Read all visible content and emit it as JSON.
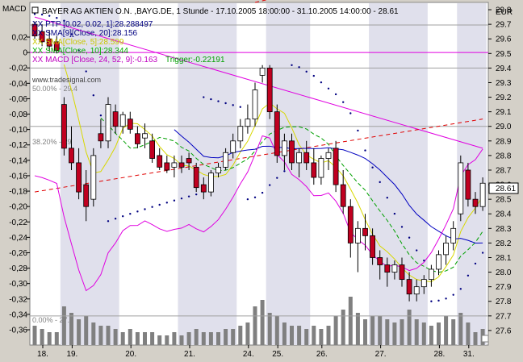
{
  "header": {
    "title": "BAYER AG AKTIEN O.N. ,BAYG.DE, 1 Stunde - 17.10.2005 18:00:00 - 31.10.2005 14:00:00 - 28.61",
    "left_axis_label": "MACD",
    "right_axis_label": "EUR"
  },
  "legend": [
    {
      "text": "XX PTP [0.02, 0.02, 1]:28.288497",
      "color": "#000080"
    },
    {
      "text": "XX SMA[9][Close, 20]:28.156",
      "color": "#000080"
    },
    {
      "text": "XX SMA[Close, 5]:28.599",
      "color": "#c8c800"
    },
    {
      "text": "XX SMA[Close, 10]:28.344",
      "color": "#00b000"
    },
    {
      "text": "XX MACD [Close, 24, 52, 9]:-0.163",
      "color": "#c000c0",
      "trigger": "Trigger:-0.22191",
      "trigger_color": "#00a000"
    }
  ],
  "watermark": "www.tradesignal.com",
  "fib_labels": {
    "f50": "50.00% - 29.4",
    "f382": "38.20% - 29",
    "f0": "0.00% - 27.7"
  },
  "current_price_label": "28.61",
  "colors": {
    "up": "#ffffff",
    "down": "#c00020",
    "sma5": "#d8d800",
    "sma10": "#00a000",
    "sma20": "#0000c0",
    "macd": "#e000e0",
    "trigger": "#00a000",
    "psar": "#000080",
    "trendline": "#e000e0",
    "dashed": "#e00000",
    "volume": "#808080",
    "fib": "#a0a0a0",
    "day_band": "#e0e0ec",
    "background": "#ffffff"
  },
  "chart_data": {
    "type": "candlestick",
    "title": "BAYER AG AKTIEN O.N. ,BAYG.DE, 1 Stunde - 17.10.2005 18:00:00 - 31.10.2005 14:00:00 - 28.61",
    "x_tick_labels": [
      "18.",
      "19.",
      "20.",
      "21.",
      "24.",
      "25.",
      "26.",
      "27.",
      "28.",
      "31."
    ],
    "y_right": {
      "label": "EUR",
      "min": 27.5,
      "max": 29.85,
      "ticks": [
        27.6,
        27.7,
        27.8,
        27.9,
        28,
        28.1,
        28.2,
        28.3,
        28.4,
        28.5,
        28.6,
        28.7,
        28.8,
        28.9,
        29,
        29.1,
        29.2,
        29.3,
        29.4,
        29.5,
        29.6,
        29.7,
        29.8
      ]
    },
    "y_left": {
      "label": "MACD",
      "min": -0.37,
      "max": 0.035,
      "ticks": [
        0.02,
        0,
        -0.02,
        -0.04,
        -0.06,
        -0.08,
        -0.1,
        -0.12,
        -0.14,
        -0.16,
        -0.18,
        -0.2,
        -0.22,
        -0.24,
        -0.26,
        -0.28,
        -0.3,
        -0.32,
        -0.34,
        -0.36
      ]
    },
    "fib_levels": [
      29.4,
      29.0,
      27.7
    ],
    "candles": [
      [
        29.7,
        29.72,
        29.6,
        29.62
      ],
      [
        29.65,
        29.7,
        29.55,
        29.58
      ],
      [
        29.6,
        29.66,
        29.52,
        29.55
      ],
      [
        29.58,
        29.62,
        29.5,
        29.52
      ],
      [
        29.15,
        29.2,
        28.8,
        28.85
      ],
      [
        28.85,
        29.0,
        28.7,
        28.75
      ],
      [
        28.75,
        28.85,
        28.5,
        28.55
      ],
      [
        28.6,
        28.7,
        28.35,
        28.45
      ],
      [
        28.5,
        28.85,
        28.45,
        28.8
      ],
      [
        28.95,
        29.05,
        28.85,
        28.9
      ],
      [
        28.9,
        29.2,
        28.85,
        29.15
      ],
      [
        29.1,
        29.15,
        28.95,
        29.0
      ],
      [
        29.0,
        29.1,
        28.95,
        29.08
      ],
      [
        29.05,
        29.1,
        28.95,
        28.98
      ],
      [
        28.95,
        29.0,
        28.85,
        28.88
      ],
      [
        28.92,
        29.02,
        28.85,
        28.95
      ],
      [
        28.9,
        28.95,
        28.75,
        28.78
      ],
      [
        28.8,
        28.85,
        28.7,
        28.72
      ],
      [
        28.75,
        28.8,
        28.68,
        28.7
      ],
      [
        28.72,
        28.8,
        28.65,
        28.75
      ],
      [
        28.75,
        28.8,
        28.68,
        28.72
      ],
      [
        28.78,
        28.82,
        28.7,
        28.75
      ],
      [
        28.72,
        28.75,
        28.55,
        28.58
      ],
      [
        28.6,
        28.65,
        28.5,
        28.55
      ],
      [
        28.55,
        28.7,
        28.52,
        28.68
      ],
      [
        28.68,
        28.75,
        28.65,
        28.72
      ],
      [
        28.72,
        28.85,
        28.7,
        28.82
      ],
      [
        28.82,
        28.95,
        28.78,
        28.9
      ],
      [
        28.9,
        29.05,
        28.85,
        29.0
      ],
      [
        29.0,
        29.15,
        28.95,
        29.05
      ],
      [
        29.05,
        29.3,
        29.0,
        29.25
      ],
      [
        29.35,
        29.42,
        29.3,
        29.4
      ],
      [
        29.4,
        29.42,
        29.05,
        29.1
      ],
      [
        29.1,
        29.15,
        28.75,
        28.8
      ],
      [
        28.8,
        28.95,
        28.7,
        28.9
      ],
      [
        28.9,
        28.95,
        28.7,
        28.75
      ],
      [
        28.75,
        28.85,
        28.65,
        28.82
      ],
      [
        28.82,
        28.9,
        28.7,
        28.75
      ],
      [
        28.75,
        28.85,
        28.6,
        28.65
      ],
      [
        28.65,
        28.8,
        28.6,
        28.78
      ],
      [
        28.78,
        28.85,
        28.7,
        28.82
      ],
      [
        28.85,
        28.9,
        28.55,
        28.6
      ],
      [
        28.6,
        28.7,
        28.4,
        28.45
      ],
      [
        28.45,
        28.5,
        28.1,
        28.2
      ],
      [
        28.2,
        28.35,
        28.0,
        28.3
      ],
      [
        28.3,
        28.4,
        28.15,
        28.25
      ],
      [
        28.25,
        28.3,
        28.05,
        28.1
      ],
      [
        28.1,
        28.15,
        27.95,
        28.05
      ],
      [
        28.05,
        28.1,
        27.9,
        28.0
      ],
      [
        28.0,
        28.08,
        27.95,
        28.05
      ],
      [
        28.05,
        28.1,
        27.9,
        27.95
      ],
      [
        27.95,
        28.0,
        27.8,
        27.85
      ],
      [
        27.85,
        27.95,
        27.8,
        27.9
      ],
      [
        27.9,
        27.98,
        27.85,
        27.95
      ],
      [
        27.95,
        28.05,
        27.9,
        28.02
      ],
      [
        28.02,
        28.15,
        27.98,
        28.12
      ],
      [
        28.12,
        28.25,
        28.05,
        28.2
      ],
      [
        28.2,
        28.35,
        28.15,
        28.3
      ],
      [
        28.4,
        28.8,
        28.35,
        28.75
      ],
      [
        28.7,
        28.75,
        28.45,
        28.5
      ],
      [
        28.5,
        28.55,
        28.4,
        28.45
      ],
      [
        28.45,
        28.65,
        28.42,
        28.61
      ]
    ],
    "volume": [
      6,
      5,
      4,
      4,
      12,
      10,
      8,
      9,
      7,
      6,
      6,
      5,
      4,
      5,
      4,
      4,
      4,
      3,
      3,
      4,
      3,
      4,
      5,
      4,
      4,
      4,
      5,
      5,
      6,
      7,
      12,
      14,
      10,
      9,
      7,
      6,
      6,
      5,
      6,
      5,
      6,
      9,
      11,
      15,
      10,
      8,
      9,
      9,
      8,
      7,
      8,
      11,
      8,
      7,
      6,
      7,
      9,
      8,
      10,
      7,
      4,
      5
    ],
    "series": [
      {
        "name": "SMA[Close, 5]",
        "color_key": "sma5"
      },
      {
        "name": "SMA[9][Close, 20]",
        "color_key": "sma20"
      },
      {
        "name": "SMA[Close, 10]",
        "color_key": "sma10"
      },
      {
        "name": "PTP [0.02, 0.02, 1]",
        "color_key": "psar"
      },
      {
        "name": "MACD [Close, 24, 52, 9]",
        "color_key": "macd"
      }
    ],
    "trendlines": [
      {
        "type": "solid",
        "from": [
          0,
          29.75
        ],
        "to": [
          61,
          28.85
        ]
      },
      {
        "type": "dashed",
        "from": [
          0,
          28.55
        ],
        "to": [
          61,
          29.05
        ]
      },
      {
        "type": "dashed",
        "from": [
          30,
          29.85
        ],
        "to": [
          61,
          30.2
        ]
      }
    ]
  }
}
